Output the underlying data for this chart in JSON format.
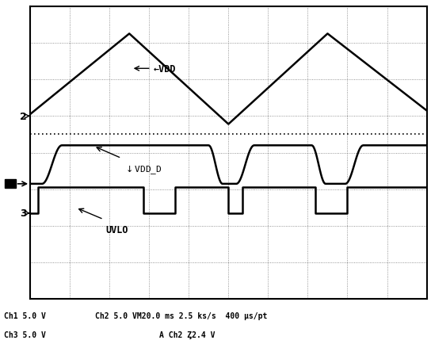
{
  "bg_color": "#ffffff",
  "grid_color": "#555555",
  "line_color": "#000000",
  "status_text_line1": "Ch1 5.0 V         Ch2 5.0 VM20.0 ms 2.5 ks/s  400 μs/pt",
  "status_text_line2": "Ch3 5.0 V                          A Ch2 Ȥ2.4 V",
  "label_VDD": "←VDD",
  "label_VDD_D": "VDD_D",
  "label_UVLO": "UVLO",
  "marker_2": "2",
  "marker_3": "3"
}
